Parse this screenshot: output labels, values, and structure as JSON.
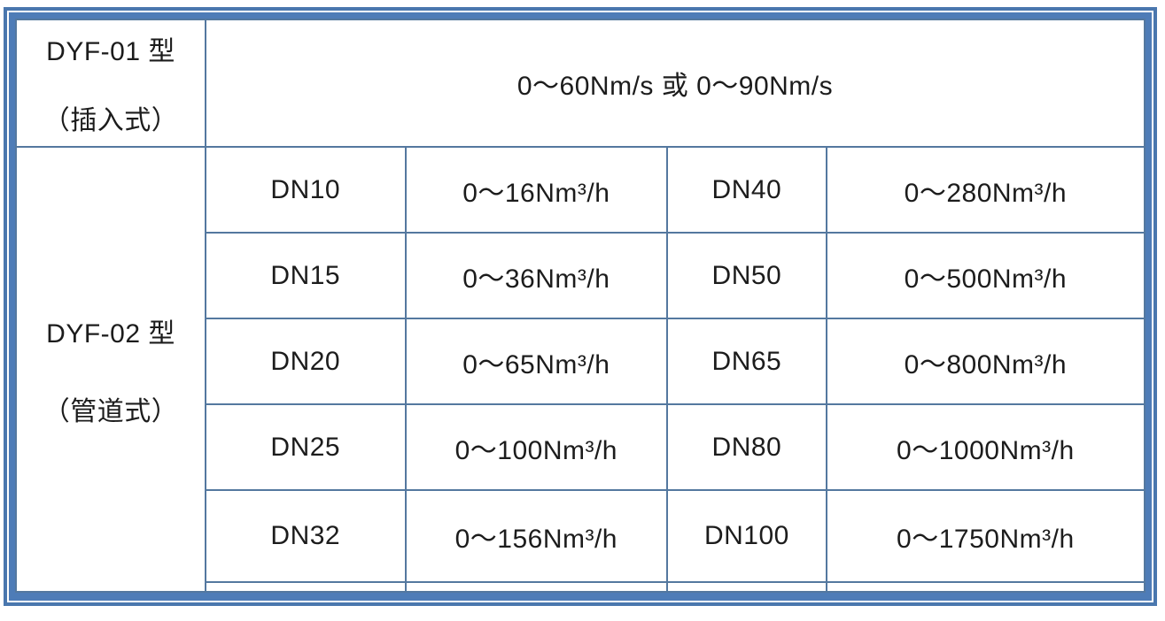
{
  "colors": {
    "shaded_row_fill": "#b8cce4",
    "grid_border": "#54789f",
    "frame_border": "#4e7cb7",
    "text": "#1c1c1c"
  },
  "table": {
    "models": [
      {
        "name": "DYF-01 型",
        "variant": "（插入式）"
      },
      {
        "name": "DYF-02 型",
        "variant": "（管道式）"
      }
    ],
    "velocity_range": "0～60Nm/s 或 0～90Nm/s",
    "rows": [
      {
        "dn_small": "DN10",
        "flow_small": "0～16Nm³/h",
        "dn_large": "DN40",
        "flow_large": "0～280Nm³/h"
      },
      {
        "dn_small": "DN15",
        "flow_small": "0～36Nm³/h",
        "dn_large": "DN50",
        "flow_large": "0～500Nm³/h"
      },
      {
        "dn_small": "DN20",
        "flow_small": "0～65Nm³/h",
        "dn_large": "DN65",
        "flow_large": "0～800Nm³/h"
      },
      {
        "dn_small": "DN25",
        "flow_small": "0～100Nm³/h",
        "dn_large": "DN80",
        "flow_large": "0～1000Nm³/h"
      },
      {
        "dn_small": "DN32",
        "flow_small": "0～156Nm³/h",
        "dn_large": "DN100",
        "flow_large": "0～1750Nm³/h"
      }
    ]
  }
}
